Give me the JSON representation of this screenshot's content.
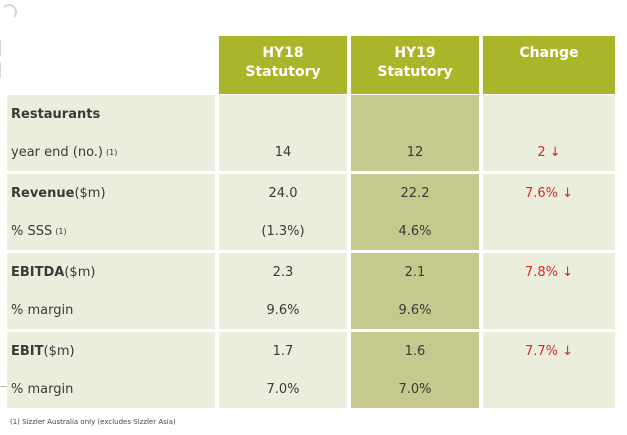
{
  "columns": {
    "hy18": {
      "line1": "HY18",
      "line2": "Statutory"
    },
    "hy19": {
      "line1": "HY19",
      "line2": "Statutory"
    },
    "change": {
      "line1": "Change"
    }
  },
  "rows": [
    {
      "label": "Restaurants",
      "label_suffix": "",
      "sup": "",
      "hy18": "",
      "hy19": "",
      "change": ""
    },
    {
      "label": "year end (no.)",
      "label_suffix": "",
      "sup": "(1)",
      "hy18": "14",
      "hy19": "12",
      "change": "2 ↓"
    },
    {
      "label": "Revenue",
      "label_suffix": " ($m)",
      "sup": "",
      "hy18": "24.0",
      "hy19": "22.2",
      "change": "7.6% ↓"
    },
    {
      "label": "% SSS",
      "label_suffix": "",
      "sup": "(1)",
      "hy18": "(1.3%)",
      "hy19": "4.6%",
      "change": ""
    },
    {
      "label": "EBITDA",
      "label_suffix": " ($m)",
      "sup": "",
      "hy18": "2.3",
      "hy19": "2.1",
      "change": "7.8% ↓"
    },
    {
      "label": "% margin",
      "label_suffix": "",
      "sup": "",
      "hy18": "9.6%",
      "hy19": "9.6%",
      "change": ""
    },
    {
      "label": "EBIT",
      "label_suffix": " ($m)",
      "sup": "",
      "hy18": "1.7",
      "hy19": "1.6",
      "change": "7.7% ↓"
    },
    {
      "label": "% margin",
      "label_suffix": "",
      "sup": "",
      "hy18": "7.0%",
      "hy19": "7.0%",
      "change": ""
    }
  ],
  "footnote": "(1)  Sizzler Australia only (excludes Sizzler Asia)",
  "colors": {
    "header": "#aab62a",
    "cell_bg": "#ebeedc",
    "hy19_bg": "#c5c98d",
    "decrease": "#d42a2a"
  }
}
